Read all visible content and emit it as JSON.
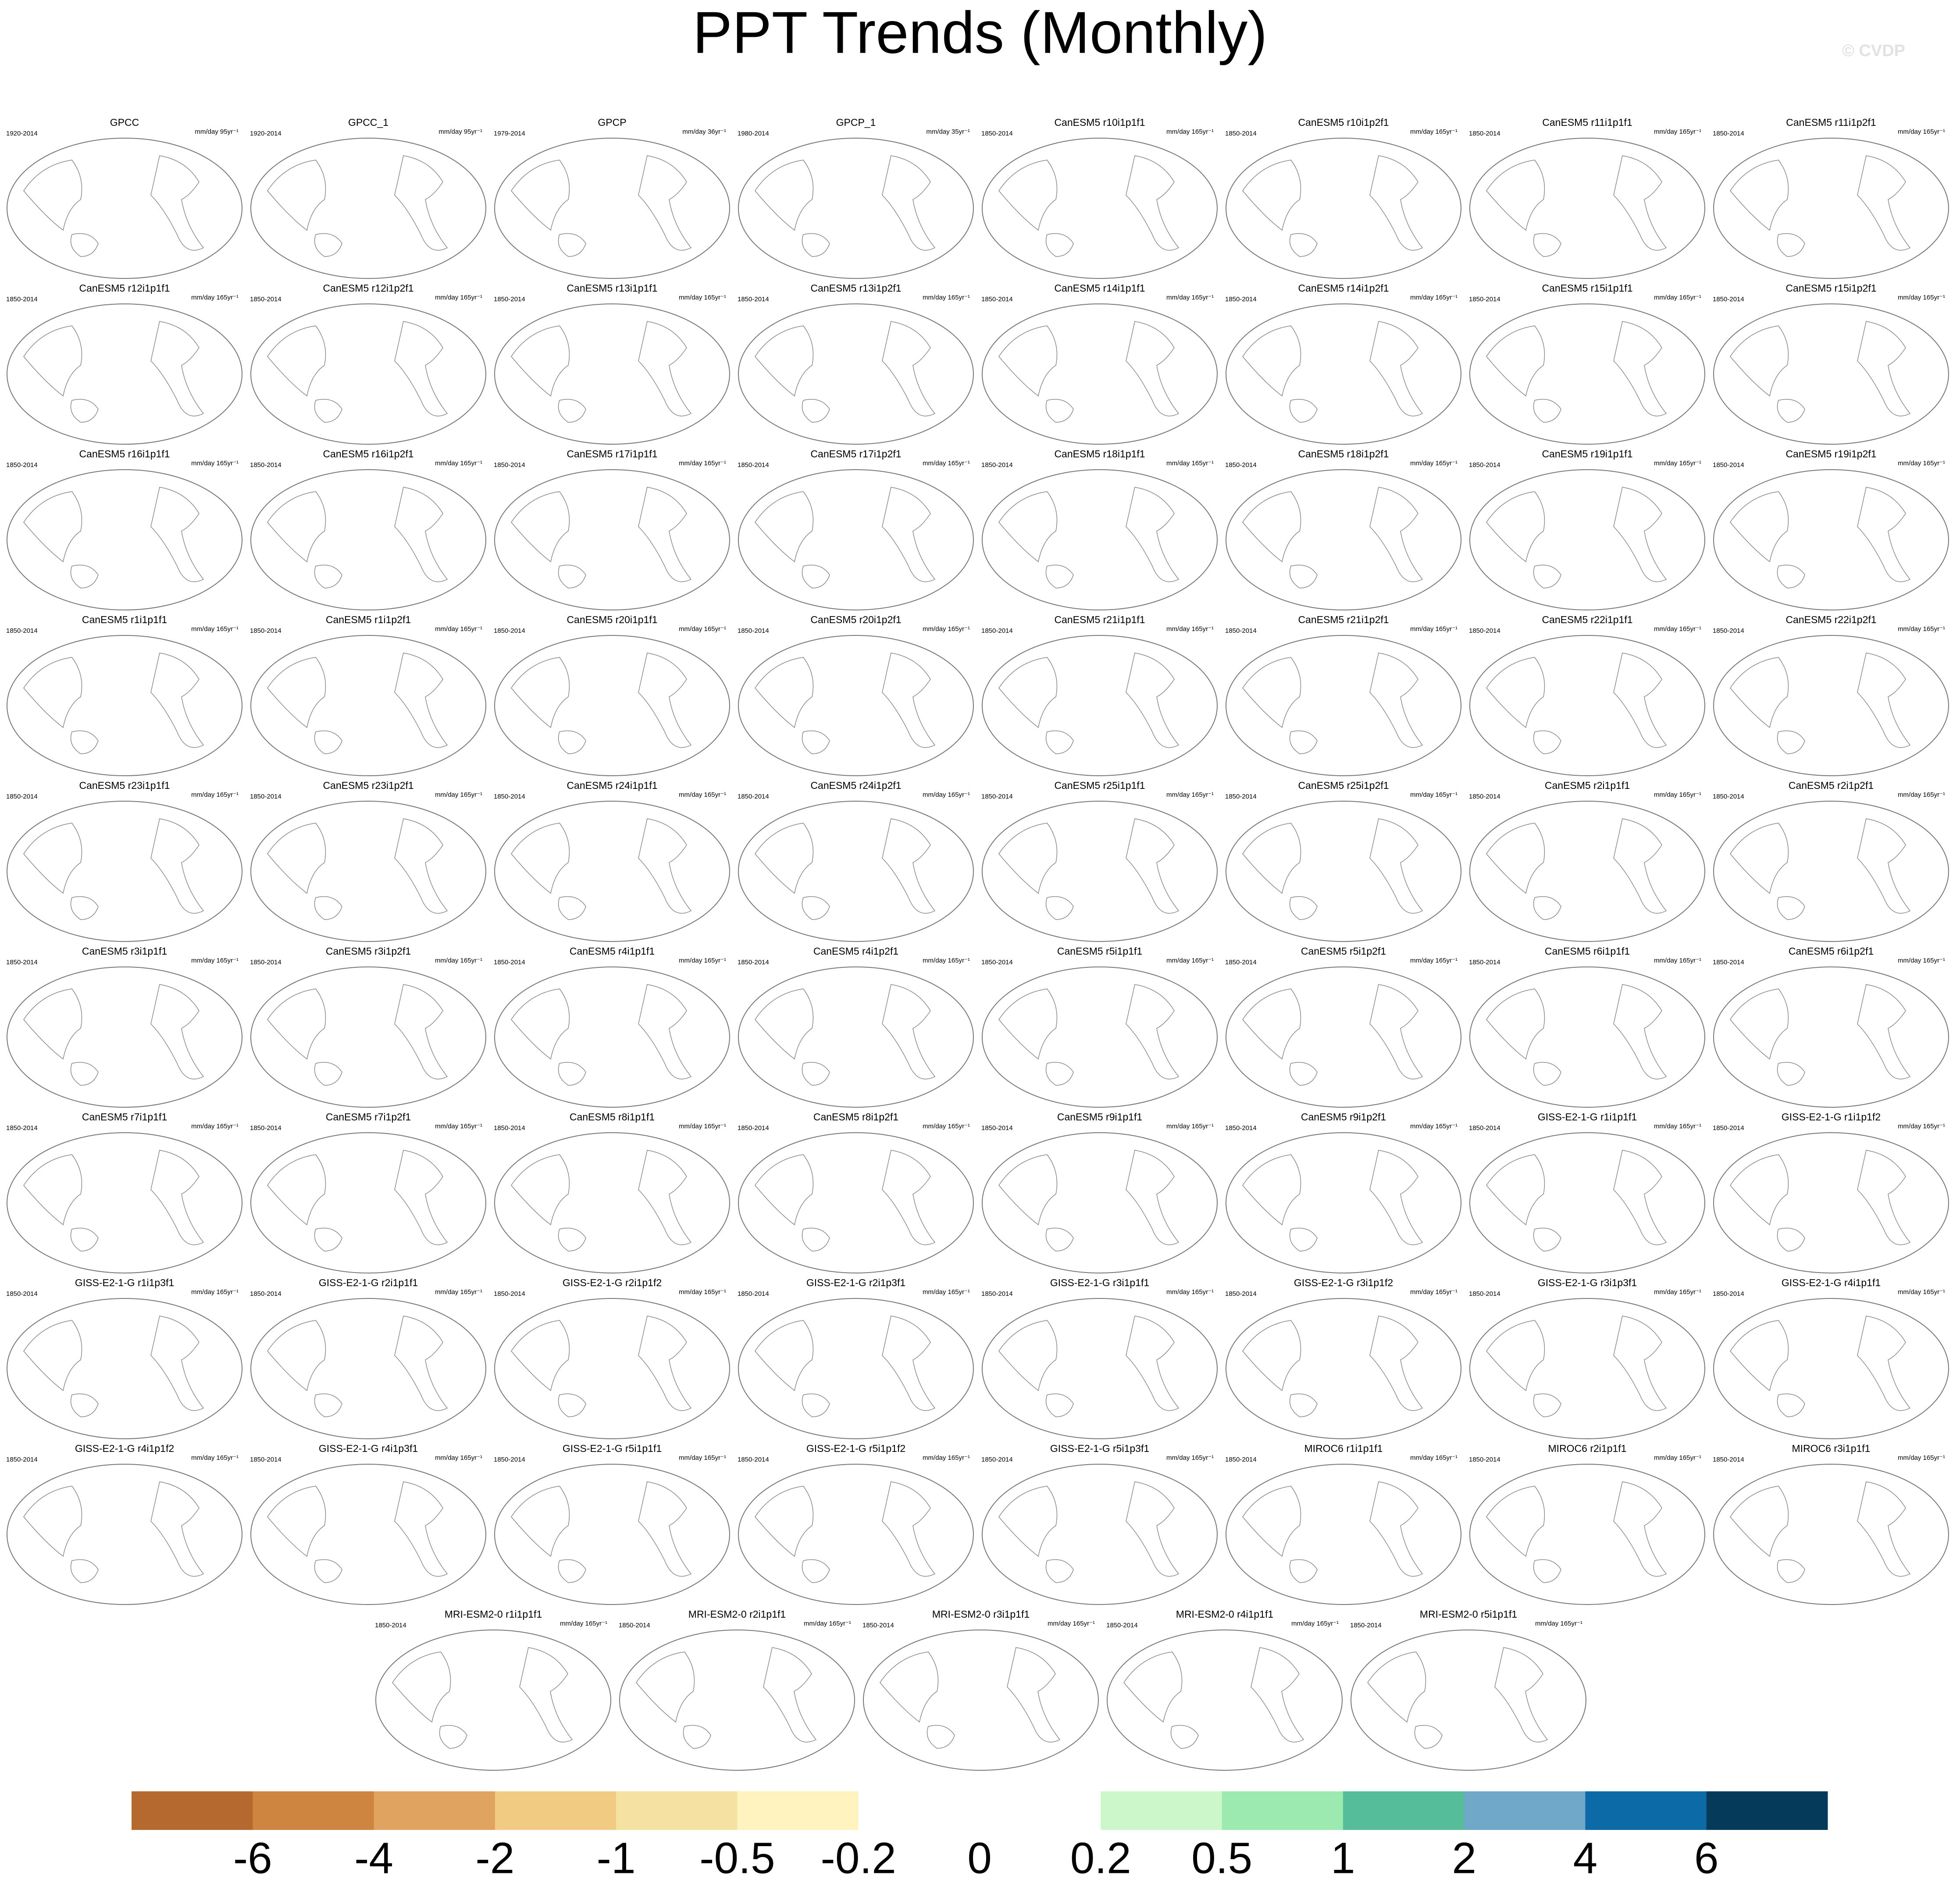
{
  "chart_data": {
    "type": "map-panels",
    "title": "PPT Trends (Monthly)",
    "watermark": "© CVDP",
    "panels": [
      {
        "title": "GPCC",
        "period": "1920-2014",
        "units": "mm/day 95yr⁻¹"
      },
      {
        "title": "GPCC_1",
        "period": "1920-2014",
        "units": "mm/day 95yr⁻¹"
      },
      {
        "title": "GPCP",
        "period": "1979-2014",
        "units": "mm/day 36yr⁻¹"
      },
      {
        "title": "GPCP_1",
        "period": "1980-2014",
        "units": "mm/day 35yr⁻¹"
      },
      {
        "title": "CanESM5 r10i1p1f1",
        "period": "1850-2014",
        "units": "mm/day 165yr⁻¹"
      },
      {
        "title": "CanESM5 r10i1p2f1",
        "period": "1850-2014",
        "units": "mm/day 165yr⁻¹"
      },
      {
        "title": "CanESM5 r11i1p1f1",
        "period": "1850-2014",
        "units": "mm/day 165yr⁻¹"
      },
      {
        "title": "CanESM5 r11i1p2f1",
        "period": "1850-2014",
        "units": "mm/day 165yr⁻¹"
      },
      {
        "title": "CanESM5 r12i1p1f1",
        "period": "1850-2014",
        "units": "mm/day 165yr⁻¹"
      },
      {
        "title": "CanESM5 r12i1p2f1",
        "period": "1850-2014",
        "units": "mm/day 165yr⁻¹"
      },
      {
        "title": "CanESM5 r13i1p1f1",
        "period": "1850-2014",
        "units": "mm/day 165yr⁻¹"
      },
      {
        "title": "CanESM5 r13i1p2f1",
        "period": "1850-2014",
        "units": "mm/day 165yr⁻¹"
      },
      {
        "title": "CanESM5 r14i1p1f1",
        "period": "1850-2014",
        "units": "mm/day 165yr⁻¹"
      },
      {
        "title": "CanESM5 r14i1p2f1",
        "period": "1850-2014",
        "units": "mm/day 165yr⁻¹"
      },
      {
        "title": "CanESM5 r15i1p1f1",
        "period": "1850-2014",
        "units": "mm/day 165yr⁻¹"
      },
      {
        "title": "CanESM5 r15i1p2f1",
        "period": "1850-2014",
        "units": "mm/day 165yr⁻¹"
      },
      {
        "title": "CanESM5 r16i1p1f1",
        "period": "1850-2014",
        "units": "mm/day 165yr⁻¹"
      },
      {
        "title": "CanESM5 r16i1p2f1",
        "period": "1850-2014",
        "units": "mm/day 165yr⁻¹"
      },
      {
        "title": "CanESM5 r17i1p1f1",
        "period": "1850-2014",
        "units": "mm/day 165yr⁻¹"
      },
      {
        "title": "CanESM5 r17i1p2f1",
        "period": "1850-2014",
        "units": "mm/day 165yr⁻¹"
      },
      {
        "title": "CanESM5 r18i1p1f1",
        "period": "1850-2014",
        "units": "mm/day 165yr⁻¹"
      },
      {
        "title": "CanESM5 r18i1p2f1",
        "period": "1850-2014",
        "units": "mm/day 165yr⁻¹"
      },
      {
        "title": "CanESM5 r19i1p1f1",
        "period": "1850-2014",
        "units": "mm/day 165yr⁻¹"
      },
      {
        "title": "CanESM5 r19i1p2f1",
        "period": "1850-2014",
        "units": "mm/day 165yr⁻¹"
      },
      {
        "title": "CanESM5 r1i1p1f1",
        "period": "1850-2014",
        "units": "mm/day 165yr⁻¹"
      },
      {
        "title": "CanESM5 r1i1p2f1",
        "period": "1850-2014",
        "units": "mm/day 165yr⁻¹"
      },
      {
        "title": "CanESM5 r20i1p1f1",
        "period": "1850-2014",
        "units": "mm/day 165yr⁻¹"
      },
      {
        "title": "CanESM5 r20i1p2f1",
        "period": "1850-2014",
        "units": "mm/day 165yr⁻¹"
      },
      {
        "title": "CanESM5 r21i1p1f1",
        "period": "1850-2014",
        "units": "mm/day 165yr⁻¹"
      },
      {
        "title": "CanESM5 r21i1p2f1",
        "period": "1850-2014",
        "units": "mm/day 165yr⁻¹"
      },
      {
        "title": "CanESM5 r22i1p1f1",
        "period": "1850-2014",
        "units": "mm/day 165yr⁻¹"
      },
      {
        "title": "CanESM5 r22i1p2f1",
        "period": "1850-2014",
        "units": "mm/day 165yr⁻¹"
      },
      {
        "title": "CanESM5 r23i1p1f1",
        "period": "1850-2014",
        "units": "mm/day 165yr⁻¹"
      },
      {
        "title": "CanESM5 r23i1p2f1",
        "period": "1850-2014",
        "units": "mm/day 165yr⁻¹"
      },
      {
        "title": "CanESM5 r24i1p1f1",
        "period": "1850-2014",
        "units": "mm/day 165yr⁻¹"
      },
      {
        "title": "CanESM5 r24i1p2f1",
        "period": "1850-2014",
        "units": "mm/day 165yr⁻¹"
      },
      {
        "title": "CanESM5 r25i1p1f1",
        "period": "1850-2014",
        "units": "mm/day 165yr⁻¹"
      },
      {
        "title": "CanESM5 r25i1p2f1",
        "period": "1850-2014",
        "units": "mm/day 165yr⁻¹"
      },
      {
        "title": "CanESM5 r2i1p1f1",
        "period": "1850-2014",
        "units": "mm/day 165yr⁻¹"
      },
      {
        "title": "CanESM5 r2i1p2f1",
        "period": "1850-2014",
        "units": "mm/day 165yr⁻¹"
      },
      {
        "title": "CanESM5 r3i1p1f1",
        "period": "1850-2014",
        "units": "mm/day 165yr⁻¹"
      },
      {
        "title": "CanESM5 r3i1p2f1",
        "period": "1850-2014",
        "units": "mm/day 165yr⁻¹"
      },
      {
        "title": "CanESM5 r4i1p1f1",
        "period": "1850-2014",
        "units": "mm/day 165yr⁻¹"
      },
      {
        "title": "CanESM5 r4i1p2f1",
        "period": "1850-2014",
        "units": "mm/day 165yr⁻¹"
      },
      {
        "title": "CanESM5 r5i1p1f1",
        "period": "1850-2014",
        "units": "mm/day 165yr⁻¹"
      },
      {
        "title": "CanESM5 r5i1p2f1",
        "period": "1850-2014",
        "units": "mm/day 165yr⁻¹"
      },
      {
        "title": "CanESM5 r6i1p1f1",
        "period": "1850-2014",
        "units": "mm/day 165yr⁻¹"
      },
      {
        "title": "CanESM5 r6i1p2f1",
        "period": "1850-2014",
        "units": "mm/day 165yr⁻¹"
      },
      {
        "title": "CanESM5 r7i1p1f1",
        "period": "1850-2014",
        "units": "mm/day 165yr⁻¹"
      },
      {
        "title": "CanESM5 r7i1p2f1",
        "period": "1850-2014",
        "units": "mm/day 165yr⁻¹"
      },
      {
        "title": "CanESM5 r8i1p1f1",
        "period": "1850-2014",
        "units": "mm/day 165yr⁻¹"
      },
      {
        "title": "CanESM5 r8i1p2f1",
        "period": "1850-2014",
        "units": "mm/day 165yr⁻¹"
      },
      {
        "title": "CanESM5 r9i1p1f1",
        "period": "1850-2014",
        "units": "mm/day 165yr⁻¹"
      },
      {
        "title": "CanESM5 r9i1p2f1",
        "period": "1850-2014",
        "units": "mm/day 165yr⁻¹"
      },
      {
        "title": "GISS-E2-1-G r1i1p1f1",
        "period": "1850-2014",
        "units": "mm/day 165yr⁻¹"
      },
      {
        "title": "GISS-E2-1-G r1i1p1f2",
        "period": "1850-2014",
        "units": "mm/day 165yr⁻¹"
      },
      {
        "title": "GISS-E2-1-G r1i1p3f1",
        "period": "1850-2014",
        "units": "mm/day 165yr⁻¹"
      },
      {
        "title": "GISS-E2-1-G r2i1p1f1",
        "period": "1850-2014",
        "units": "mm/day 165yr⁻¹"
      },
      {
        "title": "GISS-E2-1-G r2i1p1f2",
        "period": "1850-2014",
        "units": "mm/day 165yr⁻¹"
      },
      {
        "title": "GISS-E2-1-G r2i1p3f1",
        "period": "1850-2014",
        "units": "mm/day 165yr⁻¹"
      },
      {
        "title": "GISS-E2-1-G r3i1p1f1",
        "period": "1850-2014",
        "units": "mm/day 165yr⁻¹"
      },
      {
        "title": "GISS-E2-1-G r3i1p1f2",
        "period": "1850-2014",
        "units": "mm/day 165yr⁻¹"
      },
      {
        "title": "GISS-E2-1-G r3i1p3f1",
        "period": "1850-2014",
        "units": "mm/day 165yr⁻¹"
      },
      {
        "title": "GISS-E2-1-G r4i1p1f1",
        "period": "1850-2014",
        "units": "mm/day 165yr⁻¹"
      },
      {
        "title": "GISS-E2-1-G r4i1p1f2",
        "period": "1850-2014",
        "units": "mm/day 165yr⁻¹"
      },
      {
        "title": "GISS-E2-1-G r4i1p3f1",
        "period": "1850-2014",
        "units": "mm/day 165yr⁻¹"
      },
      {
        "title": "GISS-E2-1-G r5i1p1f1",
        "period": "1850-2014",
        "units": "mm/day 165yr⁻¹"
      },
      {
        "title": "GISS-E2-1-G r5i1p1f2",
        "period": "1850-2014",
        "units": "mm/day 165yr⁻¹"
      },
      {
        "title": "GISS-E2-1-G r5i1p3f1",
        "period": "1850-2014",
        "units": "mm/day 165yr⁻¹"
      },
      {
        "title": "MIROC6 r1i1p1f1",
        "period": "1850-2014",
        "units": "mm/day 165yr⁻¹"
      },
      {
        "title": "MIROC6 r2i1p1f1",
        "period": "1850-2014",
        "units": "mm/day 165yr⁻¹"
      },
      {
        "title": "MIROC6 r3i1p1f1",
        "period": "1850-2014",
        "units": "mm/day 165yr⁻¹"
      },
      {
        "title": "MRI-ESM2-0 r1i1p1f1",
        "period": "1850-2014",
        "units": "mm/day 165yr⁻¹"
      },
      {
        "title": "MRI-ESM2-0 r2i1p1f1",
        "period": "1850-2014",
        "units": "mm/day 165yr⁻¹"
      },
      {
        "title": "MRI-ESM2-0 r3i1p1f1",
        "period": "1850-2014",
        "units": "mm/day 165yr⁻¹"
      },
      {
        "title": "MRI-ESM2-0 r4i1p1f1",
        "period": "1850-2014",
        "units": "mm/day 165yr⁻¹"
      },
      {
        "title": "MRI-ESM2-0 r5i1p1f1",
        "period": "1850-2014",
        "units": "mm/day 165yr⁻¹"
      }
    ],
    "colorbar": {
      "colors": [
        "#b5692e",
        "#cd8540",
        "#e0a460",
        "#f2cb82",
        "#f5e2a2",
        "#fff3bf",
        "#ffffff",
        "#ffffff",
        "#ccf7cb",
        "#9ceab0",
        "#55bd9a",
        "#6fa8c8",
        "#0c6aa6",
        "#053a5a"
      ],
      "ticks": [
        -6,
        -4,
        -2,
        -1,
        -0.5,
        -0.2,
        0,
        0.2,
        0.5,
        1,
        2,
        4,
        6
      ]
    }
  }
}
